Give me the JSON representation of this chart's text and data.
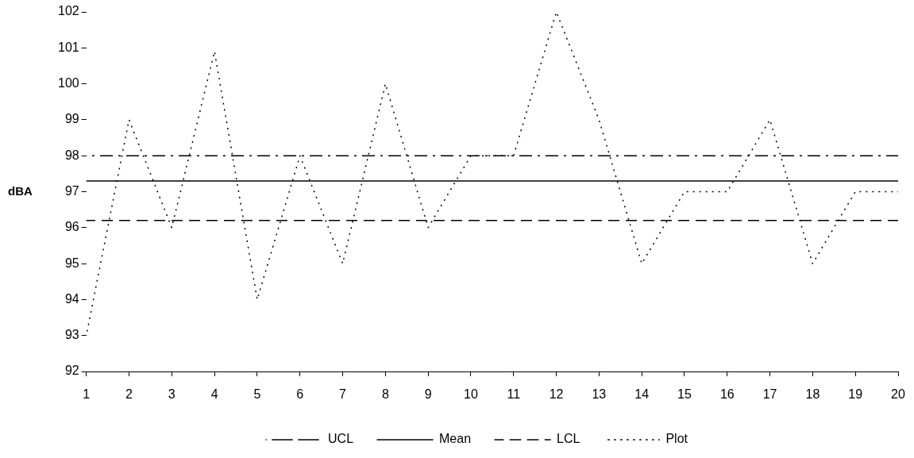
{
  "chart_data": {
    "type": "line",
    "ylabel": "dBA",
    "categories": [
      "1",
      "2",
      "3",
      "4",
      "5",
      "6",
      "7",
      "8",
      "9",
      "10",
      "11",
      "12",
      "13",
      "14",
      "15",
      "16",
      "17",
      "18",
      "19",
      "20"
    ],
    "series": [
      {
        "name": "UCL",
        "color": "#000000",
        "line_style": "dashdot",
        "values": [
          98,
          98,
          98,
          98,
          98,
          98,
          98,
          98,
          98,
          98,
          98,
          98,
          98,
          98,
          98,
          98,
          98,
          98,
          98,
          98
        ]
      },
      {
        "name": "Mean",
        "color": "#000000",
        "line_style": "solid",
        "values": [
          97.3,
          97.3,
          97.3,
          97.3,
          97.3,
          97.3,
          97.3,
          97.3,
          97.3,
          97.3,
          97.3,
          97.3,
          97.3,
          97.3,
          97.3,
          97.3,
          97.3,
          97.3,
          97.3,
          97.3
        ]
      },
      {
        "name": "LCL",
        "color": "#000000",
        "line_style": "dashed",
        "values": [
          96.2,
          96.2,
          96.2,
          96.2,
          96.2,
          96.2,
          96.2,
          96.2,
          96.2,
          96.2,
          96.2,
          96.2,
          96.2,
          96.2,
          96.2,
          96.2,
          96.2,
          96.2,
          96.2,
          96.2
        ]
      },
      {
        "name": "Plot",
        "color": "#000000",
        "line_style": "dotted",
        "values": [
          93,
          99,
          96,
          100.9,
          94,
          98,
          95,
          100,
          96,
          98,
          98,
          102,
          99,
          95,
          97,
          97,
          99,
          95,
          97,
          97
        ]
      }
    ],
    "ylim": [
      92,
      102
    ],
    "yticks": [
      92,
      93,
      94,
      95,
      96,
      97,
      98,
      99,
      100,
      101,
      102
    ],
    "grid": false,
    "legend": "bottom",
    "marker": "none"
  }
}
